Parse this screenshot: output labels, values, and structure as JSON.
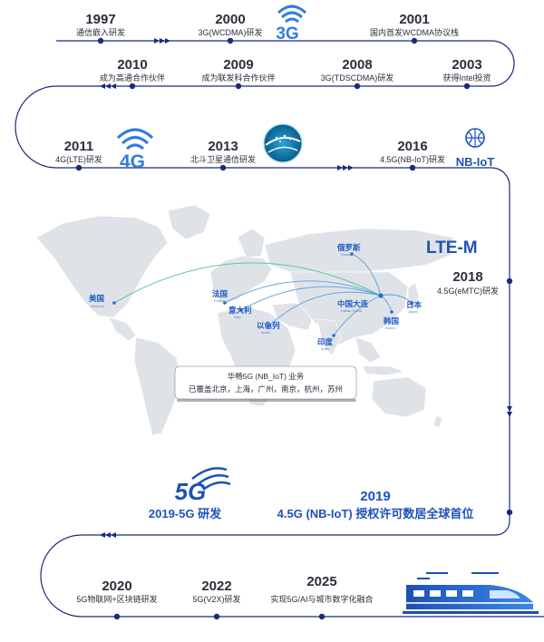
{
  "milestones": {
    "m1997": {
      "year": "1997",
      "desc": "通信嵌入研发"
    },
    "m2000": {
      "year": "2000",
      "desc": "3G(WCDMA)研发"
    },
    "m2001": {
      "year": "2001",
      "desc": "国内首发WCDMA协议栈"
    },
    "m2010": {
      "year": "2010",
      "desc": "成为高通合作伙伴"
    },
    "m2009": {
      "year": "2009",
      "desc": "成为联发科合作伙伴"
    },
    "m2008": {
      "year": "2008",
      "desc": "3G(TDSCDMA)研发"
    },
    "m2003": {
      "year": "2003",
      "desc": "获得Intel投资"
    },
    "m2011": {
      "year": "2011",
      "desc": "4G(LTE)研发"
    },
    "m2013": {
      "year": "2013",
      "desc": "北斗卫星通信研发"
    },
    "m2016": {
      "year": "2016",
      "desc": "4.5G(NB-IoT)研发"
    },
    "m2018": {
      "year": "2018",
      "desc": "4.5G(eMTC)研发"
    },
    "m2019": {
      "year": "2019",
      "desc": "4.5G (NB-IoT) 授权许可数居全球首位"
    },
    "m2019_5g": {
      "desc": "2019-5G 研发"
    },
    "m2020": {
      "year": "2020",
      "desc": "5G物联网+区块链研发"
    },
    "m2022": {
      "year": "2022",
      "desc": "5G(V2X)研发"
    },
    "m2025": {
      "year": "2025",
      "desc": "实现5G/AI与城市数字化融合"
    }
  },
  "badges": {
    "g3": "3G",
    "g4": "4G",
    "g5": "5G",
    "nbiot": "NB-IoT",
    "ltem": "LTE-M"
  },
  "map": {
    "cities": {
      "usa": {
        "cn": "美国",
        "en": "America"
      },
      "france": {
        "cn": "法国",
        "en": "France"
      },
      "italy": {
        "cn": "意大利",
        "en": "Italy"
      },
      "israel": {
        "cn": "以色列",
        "en": "Israel"
      },
      "russia": {
        "cn": "俄罗斯",
        "en": "Russia"
      },
      "dalian": {
        "cn": "中国大连",
        "en": "Dalian China"
      },
      "korea": {
        "cn": "韩国",
        "en": "Korea"
      },
      "japan": {
        "cn": "日本",
        "en": "Japan"
      },
      "india": {
        "cn": "印度",
        "en": "India"
      }
    },
    "callout": {
      "line1": "华畅5G (NB_IoT) 业务",
      "line2": "已覆盖北京，上海，广州，南京，杭州，苏州"
    }
  },
  "colors": {
    "accent": "#1f52b8",
    "path": "#1b2a7a",
    "dot": "#1b2a7a",
    "map_land": "#dfe3e8",
    "arc": "#5aa0e0",
    "arc_green": "#49c29a"
  }
}
